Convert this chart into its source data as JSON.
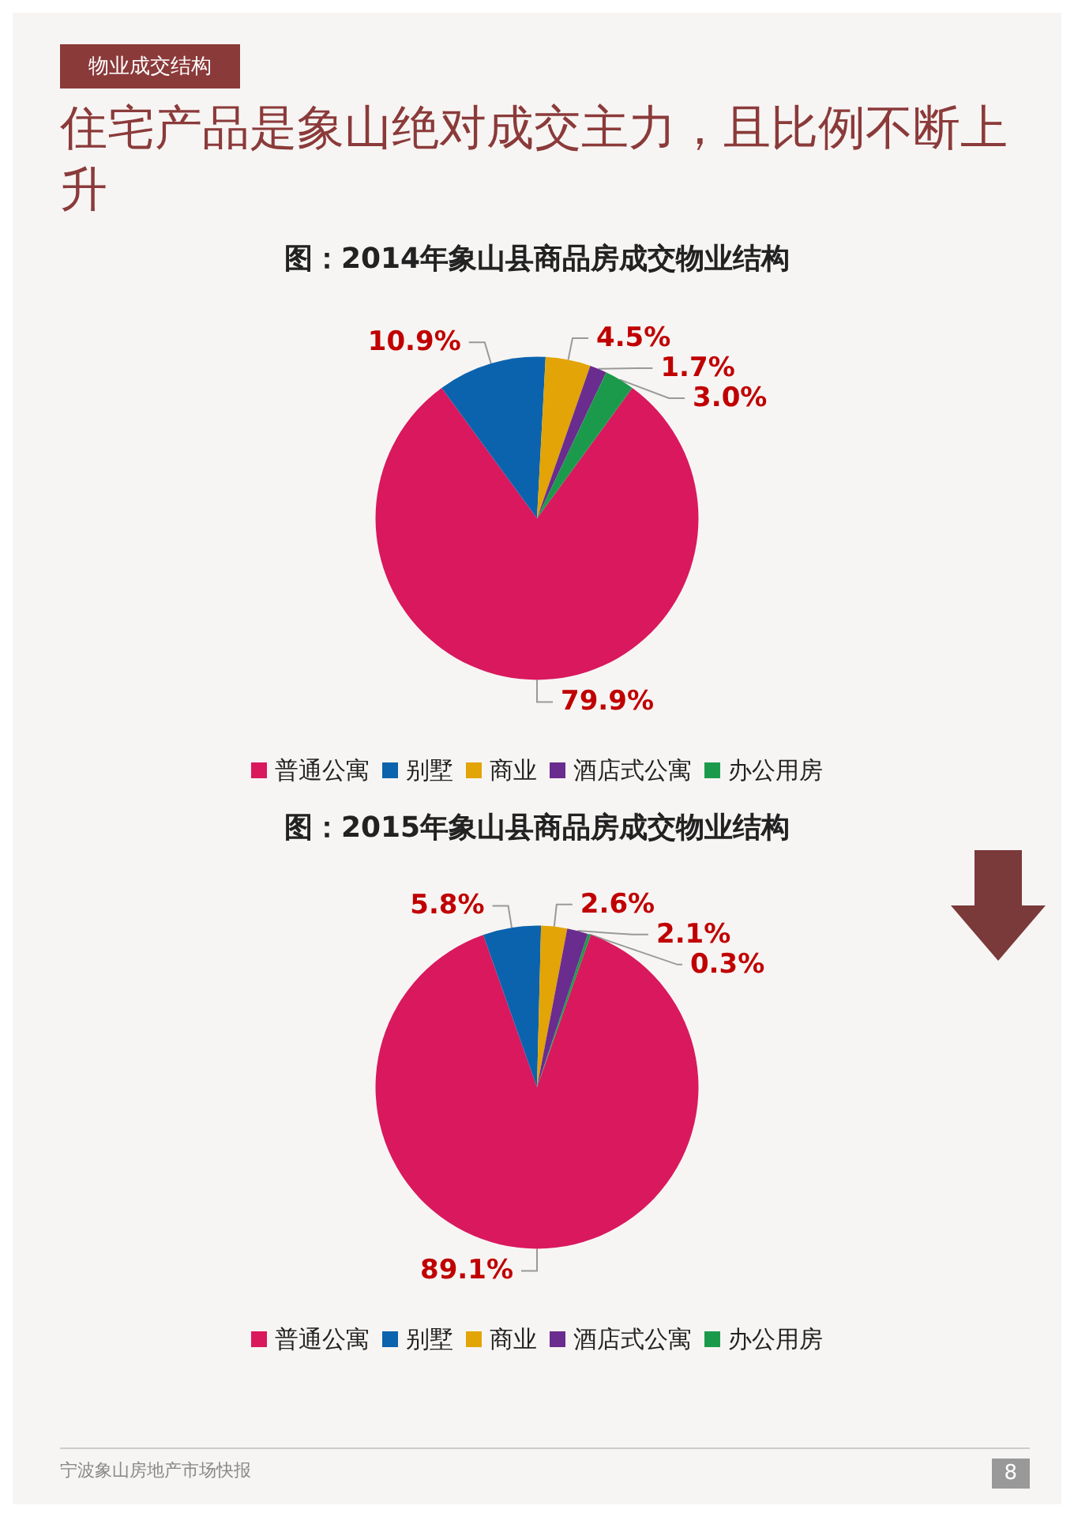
{
  "chart_data": [
    {
      "type": "other",
      "title": "住宅产品是象山绝对成交主力，且比例不断上升",
      "annotations": [
        "物业成交结构",
        "宁波象山房地产市场快报",
        "8"
      ]
    },
    {
      "type": "pie",
      "title": "图：2014年象山县商品房成交物业结构",
      "categories": [
        "普通公寓",
        "别墅",
        "商业",
        "酒店式公寓",
        "办公用房"
      ],
      "values": [
        79.9,
        10.9,
        4.5,
        1.7,
        3.0
      ],
      "value_labels": [
        "79.9%",
        "10.9%",
        "4.5%",
        "1.7%",
        "3.0%"
      ],
      "colors": [
        "#d9185e",
        "#0b63ad",
        "#e2a406",
        "#6a2c8e",
        "#1c9a4c"
      ],
      "legend": "bottom"
    },
    {
      "type": "pie",
      "title": "图：2015年象山县商品房成交物业结构",
      "categories": [
        "普通公寓",
        "别墅",
        "商业",
        "酒店式公寓",
        "办公用房"
      ],
      "values": [
        89.1,
        5.8,
        2.6,
        2.1,
        0.3
      ],
      "value_labels": [
        "89.1%",
        "5.8%",
        "2.6%",
        "2.1%",
        "0.3%"
      ],
      "colors": [
        "#d9185e",
        "#0b63ad",
        "#e2a406",
        "#6a2c8e",
        "#1c9a4c"
      ],
      "legend": "bottom"
    }
  ]
}
